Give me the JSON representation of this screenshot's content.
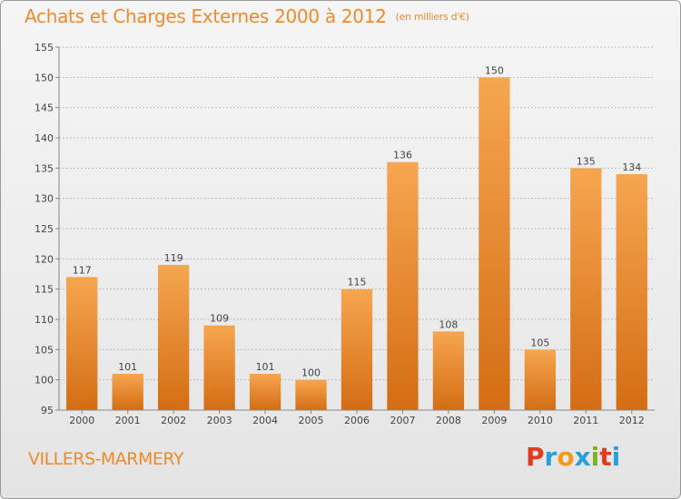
{
  "header": {
    "title": "Achats et Charges Externes 2000 à 2012",
    "unit": "(en milliers d'€)"
  },
  "footer": {
    "town": "VILLERS-MARMERY",
    "logo_letters": [
      "P",
      "r",
      "o",
      "x",
      "i",
      "t",
      "i"
    ],
    "logo_colors": [
      "#e23b1e",
      "#2a9fd8",
      "#f29a1a",
      "#2a9fd8",
      "#7ab51d",
      "#e23b1e",
      "#2a9fd8"
    ]
  },
  "colors": {
    "bar_top": "#f6a650",
    "bar_bottom": "#d46d14",
    "grid": "#bdbdbd",
    "axis": "#888888",
    "title": "#ef8a2a"
  },
  "chart_data": {
    "type": "bar",
    "categories": [
      "2000",
      "2001",
      "2002",
      "2003",
      "2004",
      "2005",
      "2006",
      "2007",
      "2008",
      "2009",
      "2010",
      "2011",
      "2012"
    ],
    "values": [
      117,
      101,
      119,
      109,
      101,
      100,
      115,
      136,
      108,
      150,
      105,
      135,
      134
    ],
    "title": "Achats et Charges Externes 2000 à 2012",
    "xlabel": "",
    "ylabel": "",
    "ylim": [
      95,
      155
    ],
    "yticks": [
      95,
      100,
      105,
      110,
      115,
      120,
      125,
      130,
      135,
      140,
      145,
      150,
      155
    ],
    "grid": true,
    "legend": "none"
  }
}
